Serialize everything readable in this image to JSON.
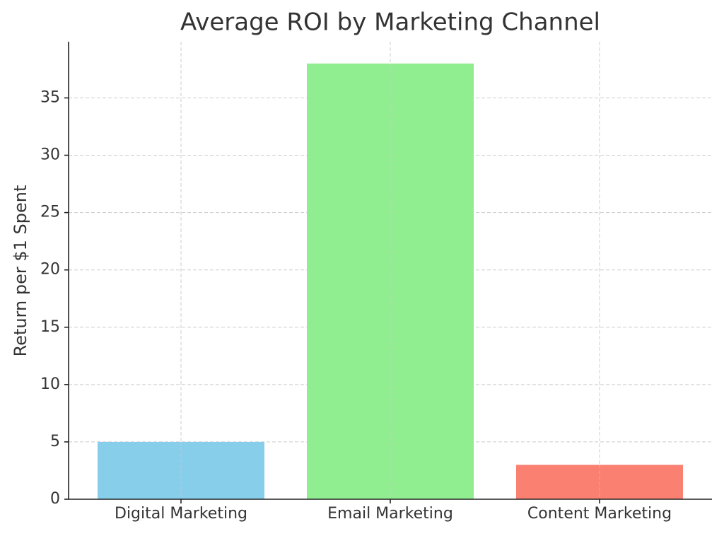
{
  "chart_data": {
    "type": "bar",
    "title": "Average ROI by Marketing Channel",
    "y_label": "Return per $1 Spent",
    "categories": [
      "Digital Marketing",
      "Email Marketing",
      "Content Marketing"
    ],
    "values": [
      5,
      38,
      3
    ],
    "colors": [
      "#87ceeb",
      "#90ee90",
      "#fa8072"
    ],
    "ylim": [
      0,
      39.9
    ],
    "yticks": [
      0,
      5,
      10,
      15,
      20,
      25,
      30,
      35
    ],
    "grid": true
  }
}
